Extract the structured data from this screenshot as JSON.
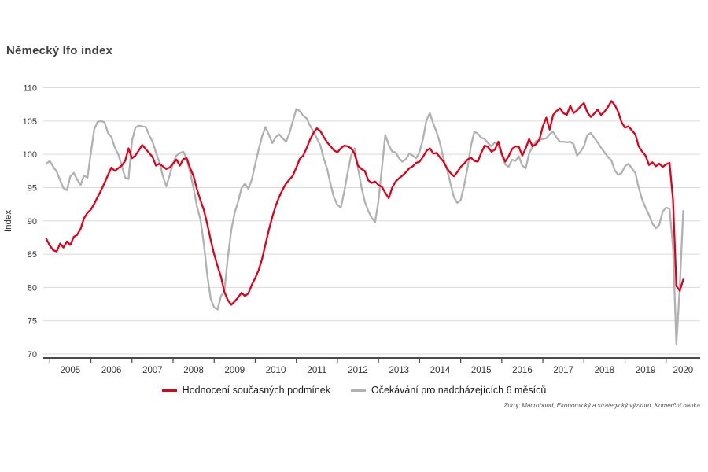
{
  "title": "Německý Ifo index",
  "y_axis": {
    "label": "Index",
    "ticks": [
      110,
      105,
      100,
      95,
      90,
      85,
      80,
      75,
      70
    ]
  },
  "x_axis": {
    "years": [
      "2005",
      "2006",
      "2007",
      "2008",
      "2009",
      "2010",
      "2011",
      "2012",
      "2013",
      "2014",
      "2015",
      "2016",
      "2017",
      "2018",
      "2019",
      "2020"
    ]
  },
  "legend": [
    {
      "label": "Hodnocení současných podmínek",
      "color": "#e00019"
    },
    {
      "label": "Očekávání pro nadcházejících 6 měsíců",
      "color": "#b1b1b1"
    }
  ],
  "source": "Zdroj: Macrobond, Ekonomický a strategický výzkum, Komerční banka",
  "colors": {
    "grid": "#d9d9d9",
    "axis": "#4a4a4a",
    "tick_text": "#333333"
  },
  "chart_data": {
    "type": "line",
    "title": "Německý Ifo index",
    "xlabel": "",
    "ylabel": "Index",
    "ylim": [
      70,
      110
    ],
    "x_start": "2004-12",
    "x_end": "2020-06",
    "frequency": "monthly",
    "grid": "horizontal",
    "legend_position": "bottom",
    "series": [
      {
        "name": "Hodnocení současných podmínek",
        "color": "#e00019",
        "values": [
          87.3,
          86.3,
          85.6,
          85.4,
          86.6,
          86.0,
          86.9,
          86.4,
          87.6,
          87.9,
          88.8,
          90.4,
          91.2,
          91.7,
          92.6,
          93.6,
          94.6,
          95.7,
          96.9,
          98.0,
          97.5,
          97.9,
          98.3,
          99.0,
          100.9,
          99.4,
          99.8,
          100.6,
          101.4,
          100.8,
          100.2,
          99.6,
          98.3,
          98.6,
          98.2,
          97.8,
          98.0,
          98.6,
          99.2,
          98.3,
          99.3,
          99.4,
          97.9,
          96.7,
          94.7,
          93.1,
          91.6,
          89.5,
          87.1,
          85.0,
          83.2,
          81.6,
          79.3,
          78.1,
          77.4,
          77.9,
          78.5,
          79.2,
          78.7,
          79.1,
          80.4,
          81.4,
          82.6,
          84.3,
          86.5,
          88.7,
          90.6,
          92.3,
          93.6,
          94.7,
          95.6,
          96.2,
          96.8,
          98.0,
          99.3,
          99.8,
          100.9,
          102.2,
          103.2,
          103.9,
          103.5,
          102.6,
          101.8,
          101.2,
          100.6,
          100.3,
          100.9,
          101.3,
          101.2,
          100.9,
          100.1,
          98.3,
          97.8,
          97.5,
          96.1,
          95.7,
          95.9,
          95.4,
          95.1,
          94.2,
          93.4,
          95.0,
          95.9,
          96.4,
          96.8,
          97.3,
          97.9,
          98.2,
          98.7,
          98.9,
          99.6,
          100.5,
          100.9,
          100.1,
          100.2,
          99.5,
          98.9,
          97.9,
          97.2,
          96.7,
          97.3,
          98.1,
          98.6,
          99.2,
          99.5,
          99.0,
          98.9,
          100.2,
          101.3,
          101.1,
          100.4,
          100.7,
          101.9,
          100.1,
          98.9,
          99.7,
          100.8,
          101.2,
          101.1,
          99.8,
          100.9,
          102.3,
          101.2,
          101.5,
          102.2,
          104.2,
          105.5,
          103.7,
          105.9,
          106.5,
          106.9,
          106.2,
          105.9,
          107.3,
          106.2,
          106.6,
          107.2,
          107.7,
          106.3,
          105.6,
          106.1,
          106.7,
          105.9,
          106.4,
          107.1,
          108.0,
          107.4,
          106.4,
          104.8,
          104.0,
          104.2,
          103.6,
          103.0,
          101.2,
          100.4,
          99.8,
          98.4,
          98.8,
          98.2,
          98.6,
          98.1,
          98.5,
          98.7,
          93.2,
          80.2,
          79.5,
          81.2
        ]
      },
      {
        "name": "Očekávání pro nadcházejících 6 měsíců",
        "color": "#b1b1b1",
        "values": [
          98.6,
          99.0,
          98.1,
          97.4,
          96.1,
          94.9,
          94.6,
          96.7,
          97.2,
          96.2,
          95.4,
          96.8,
          96.5,
          100.2,
          103.8,
          104.9,
          105.0,
          104.8,
          103.2,
          102.6,
          101.0,
          100.0,
          98.3,
          96.5,
          96.3,
          102.0,
          104.0,
          104.3,
          104.2,
          104.1,
          102.9,
          101.9,
          100.3,
          98.8,
          96.8,
          95.2,
          96.8,
          98.7,
          99.8,
          100.2,
          100.4,
          99.3,
          97.2,
          94.9,
          92.1,
          90.2,
          86.5,
          81.8,
          78.3,
          77.0,
          76.7,
          78.7,
          79.5,
          84.5,
          88.6,
          91.2,
          92.9,
          94.9,
          95.6,
          94.8,
          96.2,
          98.5,
          100.7,
          102.7,
          104.1,
          102.9,
          101.7,
          102.6,
          103.0,
          102.4,
          101.9,
          103.2,
          105.0,
          106.8,
          106.5,
          105.8,
          105.4,
          104.3,
          103.4,
          102.4,
          101.4,
          99.4,
          97.8,
          95.5,
          93.5,
          92.4,
          92.0,
          94.4,
          97.3,
          99.8,
          100.9,
          98.0,
          95.1,
          92.9,
          91.5,
          90.5,
          89.8,
          93.0,
          98.0,
          102.9,
          101.4,
          100.4,
          100.3,
          99.4,
          98.9,
          99.3,
          100.1,
          99.8,
          99.4,
          100.4,
          102.3,
          105.1,
          106.2,
          104.6,
          103.3,
          101.6,
          99.3,
          97.7,
          95.7,
          93.6,
          92.7,
          93.1,
          95.3,
          97.9,
          101.3,
          103.4,
          103.1,
          102.5,
          102.3,
          101.7,
          101.2,
          101.8,
          101.3,
          99.8,
          98.5,
          98.1,
          99.2,
          99.0,
          99.7,
          98.3,
          97.9,
          100.1,
          101.2,
          102.0,
          102.2,
          102.3,
          102.4,
          103.0,
          103.4,
          102.5,
          101.9,
          101.9,
          101.8,
          101.9,
          101.5,
          99.8,
          100.4,
          101.2,
          102.9,
          103.2,
          102.5,
          101.8,
          101.0,
          100.3,
          99.6,
          99.1,
          97.6,
          96.9,
          97.2,
          98.2,
          98.6,
          97.9,
          97.2,
          95.0,
          93.2,
          92.0,
          90.9,
          89.6,
          88.9,
          89.4,
          91.4,
          92.0,
          91.8,
          86.0,
          71.5,
          80.2,
          91.5
        ]
      }
    ]
  }
}
